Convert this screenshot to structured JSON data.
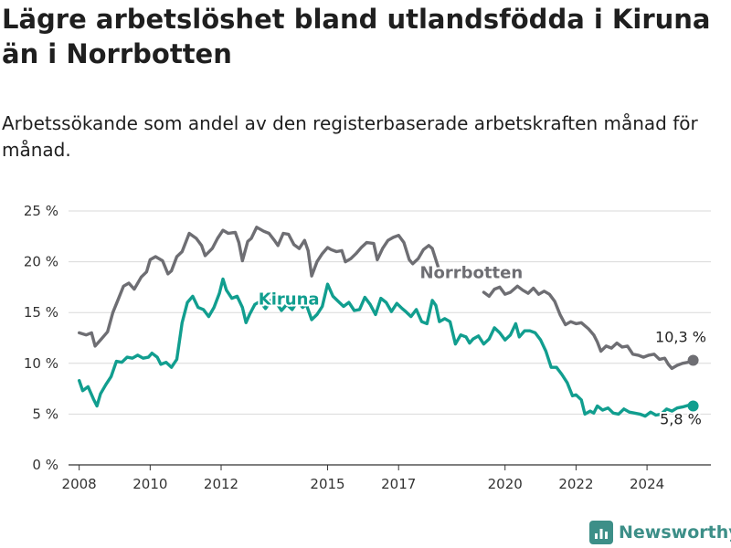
{
  "title": "Lägre arbetslöshet bland utlandsfödda i Kiruna än i Norrbotten",
  "subtitle": "Arbetssökande som andel av den registerbaserade arbetskraften månad för månad.",
  "brand": {
    "name": "Newsworthy",
    "icon": "newsworthy-logo-icon",
    "color": "#3d8f88"
  },
  "chart_data": {
    "type": "line",
    "title": "Lägre arbetslöshet bland utlandsfödda i Kiruna än i Norrbotten",
    "subtitle": "Arbetssökande som andel av den registerbaserade arbetskraften månad för månad.",
    "xlabel": "",
    "ylabel": "",
    "xlim": [
      2007.7,
      2025.8
    ],
    "ylim": [
      0,
      25
    ],
    "grid": true,
    "legend": "inline labels",
    "x_ticks": [
      {
        "value": 2008,
        "label": "2008"
      },
      {
        "value": 2010,
        "label": "2010"
      },
      {
        "value": 2012,
        "label": "2012"
      },
      {
        "value": 2015,
        "label": "2015"
      },
      {
        "value": 2017,
        "label": "2017"
      },
      {
        "value": 2020,
        "label": "2020"
      },
      {
        "value": 2022,
        "label": "2022"
      },
      {
        "value": 2024,
        "label": "2024"
      }
    ],
    "y_ticks": [
      {
        "value": 0,
        "label": "0 %"
      },
      {
        "value": 5,
        "label": "5 %"
      },
      {
        "value": 10,
        "label": "10 %"
      },
      {
        "value": 15,
        "label": "15 %"
      },
      {
        "value": 20,
        "label": "20 %"
      },
      {
        "value": 25,
        "label": "25 %"
      }
    ],
    "series": [
      {
        "name": "Norrbotten",
        "color": "#6e6e73",
        "end_label": "10,3 %",
        "points": [
          [
            2008.0,
            13.0
          ],
          [
            2008.2,
            12.8
          ],
          [
            2008.35,
            13.0
          ],
          [
            2008.45,
            11.7
          ],
          [
            2008.6,
            12.3
          ],
          [
            2008.8,
            13.1
          ],
          [
            2008.95,
            15.0
          ],
          [
            2009.1,
            16.3
          ],
          [
            2009.25,
            17.6
          ],
          [
            2009.4,
            17.9
          ],
          [
            2009.55,
            17.3
          ],
          [
            2009.75,
            18.5
          ],
          [
            2009.9,
            19.0
          ],
          [
            2010.0,
            20.2
          ],
          [
            2010.15,
            20.5
          ],
          [
            2010.35,
            20.1
          ],
          [
            2010.5,
            18.8
          ],
          [
            2010.6,
            19.1
          ],
          [
            2010.75,
            20.5
          ],
          [
            2010.9,
            21.0
          ],
          [
            2011.0,
            21.9
          ],
          [
            2011.1,
            22.8
          ],
          [
            2011.3,
            22.3
          ],
          [
            2011.45,
            21.6
          ],
          [
            2011.55,
            20.6
          ],
          [
            2011.75,
            21.3
          ],
          [
            2011.9,
            22.3
          ],
          [
            2012.05,
            23.1
          ],
          [
            2012.2,
            22.8
          ],
          [
            2012.4,
            22.9
          ],
          [
            2012.5,
            21.9
          ],
          [
            2012.6,
            20.1
          ],
          [
            2012.75,
            22.0
          ],
          [
            2012.85,
            22.3
          ],
          [
            2013.0,
            23.4
          ],
          [
            2013.2,
            23.0
          ],
          [
            2013.35,
            22.8
          ],
          [
            2013.5,
            22.1
          ],
          [
            2013.6,
            21.6
          ],
          [
            2013.75,
            22.8
          ],
          [
            2013.9,
            22.7
          ],
          [
            2014.05,
            21.7
          ],
          [
            2014.2,
            21.3
          ],
          [
            2014.35,
            22.1
          ],
          [
            2014.45,
            21.1
          ],
          [
            2014.55,
            18.6
          ],
          [
            2014.7,
            20.0
          ],
          [
            2014.85,
            20.8
          ],
          [
            2015.0,
            21.4
          ],
          [
            2015.1,
            21.2
          ],
          [
            2015.25,
            21.0
          ],
          [
            2015.4,
            21.1
          ],
          [
            2015.5,
            20.0
          ],
          [
            2015.65,
            20.3
          ],
          [
            2015.8,
            20.8
          ],
          [
            2015.95,
            21.4
          ],
          [
            2016.1,
            21.9
          ],
          [
            2016.3,
            21.8
          ],
          [
            2016.4,
            20.2
          ],
          [
            2016.55,
            21.3
          ],
          [
            2016.7,
            22.1
          ],
          [
            2016.85,
            22.4
          ],
          [
            2017.0,
            22.6
          ],
          [
            2017.15,
            21.9
          ],
          [
            2017.3,
            20.2
          ],
          [
            2017.4,
            19.8
          ],
          [
            2017.55,
            20.3
          ],
          [
            2017.7,
            21.2
          ],
          [
            2017.85,
            21.6
          ],
          [
            2017.95,
            21.3
          ],
          [
            2018.05,
            20.2
          ],
          [
            2018.15,
            19.1
          ],
          [
            2019.4,
            17.0
          ],
          [
            2019.55,
            16.6
          ],
          [
            2019.7,
            17.3
          ],
          [
            2019.85,
            17.5
          ],
          [
            2020.0,
            16.8
          ],
          [
            2020.15,
            17.0
          ],
          [
            2020.35,
            17.6
          ],
          [
            2020.5,
            17.2
          ],
          [
            2020.65,
            16.9
          ],
          [
            2020.8,
            17.4
          ],
          [
            2020.95,
            16.8
          ],
          [
            2021.1,
            17.1
          ],
          [
            2021.25,
            16.8
          ],
          [
            2021.4,
            16.1
          ],
          [
            2021.55,
            14.8
          ],
          [
            2021.7,
            13.8
          ],
          [
            2021.85,
            14.1
          ],
          [
            2022.0,
            13.9
          ],
          [
            2022.15,
            14.0
          ],
          [
            2022.35,
            13.4
          ],
          [
            2022.5,
            12.8
          ],
          [
            2022.6,
            12.1
          ],
          [
            2022.7,
            11.2
          ],
          [
            2022.85,
            11.7
          ],
          [
            2023.0,
            11.5
          ],
          [
            2023.15,
            12.0
          ],
          [
            2023.3,
            11.6
          ],
          [
            2023.45,
            11.7
          ],
          [
            2023.6,
            10.9
          ],
          [
            2023.75,
            10.8
          ],
          [
            2023.9,
            10.6
          ],
          [
            2024.05,
            10.8
          ],
          [
            2024.2,
            10.9
          ],
          [
            2024.35,
            10.4
          ],
          [
            2024.5,
            10.5
          ],
          [
            2024.6,
            9.9
          ],
          [
            2024.7,
            9.5
          ],
          [
            2024.85,
            9.8
          ],
          [
            2025.0,
            10.0
          ],
          [
            2025.15,
            10.1
          ],
          [
            2025.3,
            10.3
          ]
        ]
      },
      {
        "name": "Kiruna",
        "color": "#119e8f",
        "end_label": "5,8 %",
        "points": [
          [
            2008.0,
            8.3
          ],
          [
            2008.1,
            7.3
          ],
          [
            2008.25,
            7.7
          ],
          [
            2008.4,
            6.5
          ],
          [
            2008.5,
            5.8
          ],
          [
            2008.6,
            7.0
          ],
          [
            2008.75,
            7.9
          ],
          [
            2008.9,
            8.7
          ],
          [
            2009.05,
            10.2
          ],
          [
            2009.2,
            10.1
          ],
          [
            2009.35,
            10.6
          ],
          [
            2009.5,
            10.5
          ],
          [
            2009.65,
            10.8
          ],
          [
            2009.8,
            10.5
          ],
          [
            2009.95,
            10.6
          ],
          [
            2010.05,
            11.0
          ],
          [
            2010.2,
            10.6
          ],
          [
            2010.3,
            9.9
          ],
          [
            2010.45,
            10.1
          ],
          [
            2010.6,
            9.6
          ],
          [
            2010.75,
            10.4
          ],
          [
            2010.9,
            14.0
          ],
          [
            2011.05,
            16.0
          ],
          [
            2011.2,
            16.6
          ],
          [
            2011.35,
            15.5
          ],
          [
            2011.5,
            15.3
          ],
          [
            2011.65,
            14.6
          ],
          [
            2011.8,
            15.5
          ],
          [
            2011.95,
            16.9
          ],
          [
            2012.05,
            18.3
          ],
          [
            2012.15,
            17.2
          ],
          [
            2012.3,
            16.4
          ],
          [
            2012.45,
            16.6
          ],
          [
            2012.6,
            15.5
          ],
          [
            2012.7,
            14.0
          ],
          [
            2012.8,
            14.8
          ],
          [
            2012.95,
            15.8
          ],
          [
            2013.1,
            16.1
          ],
          [
            2013.25,
            15.4
          ],
          [
            2013.4,
            16.2
          ],
          [
            2013.55,
            16.0
          ],
          [
            2013.7,
            15.2
          ],
          [
            2013.85,
            15.8
          ],
          [
            2014.0,
            15.3
          ],
          [
            2014.15,
            16.1
          ],
          [
            2014.3,
            15.5
          ],
          [
            2014.4,
            15.8
          ],
          [
            2014.55,
            14.3
          ],
          [
            2014.7,
            14.8
          ],
          [
            2014.85,
            15.6
          ],
          [
            2015.0,
            17.8
          ],
          [
            2015.15,
            16.6
          ],
          [
            2015.3,
            16.1
          ],
          [
            2015.45,
            15.6
          ],
          [
            2015.6,
            16.0
          ],
          [
            2015.75,
            15.2
          ],
          [
            2015.9,
            15.3
          ],
          [
            2016.05,
            16.5
          ],
          [
            2016.2,
            15.8
          ],
          [
            2016.35,
            14.8
          ],
          [
            2016.5,
            16.4
          ],
          [
            2016.65,
            16.0
          ],
          [
            2016.8,
            15.1
          ],
          [
            2016.95,
            15.9
          ],
          [
            2017.1,
            15.4
          ],
          [
            2017.2,
            15.1
          ],
          [
            2017.35,
            14.6
          ],
          [
            2017.5,
            15.3
          ],
          [
            2017.65,
            14.1
          ],
          [
            2017.8,
            13.9
          ],
          [
            2017.95,
            16.2
          ],
          [
            2018.05,
            15.7
          ],
          [
            2018.15,
            14.1
          ],
          [
            2018.3,
            14.4
          ],
          [
            2018.45,
            14.1
          ],
          [
            2018.6,
            11.9
          ],
          [
            2018.75,
            12.8
          ],
          [
            2018.9,
            12.6
          ],
          [
            2019.0,
            12.0
          ],
          [
            2019.1,
            12.4
          ],
          [
            2019.25,
            12.7
          ],
          [
            2019.4,
            11.9
          ],
          [
            2019.55,
            12.4
          ],
          [
            2019.7,
            13.5
          ],
          [
            2019.85,
            13.0
          ],
          [
            2020.0,
            12.3
          ],
          [
            2020.15,
            12.8
          ],
          [
            2020.3,
            13.9
          ],
          [
            2020.4,
            12.6
          ],
          [
            2020.55,
            13.2
          ],
          [
            2020.7,
            13.2
          ],
          [
            2020.85,
            13.0
          ],
          [
            2021.0,
            12.3
          ],
          [
            2021.15,
            11.2
          ],
          [
            2021.3,
            9.6
          ],
          [
            2021.45,
            9.6
          ],
          [
            2021.6,
            8.9
          ],
          [
            2021.75,
            8.1
          ],
          [
            2021.9,
            6.8
          ],
          [
            2022.0,
            6.9
          ],
          [
            2022.15,
            6.4
          ],
          [
            2022.25,
            5.0
          ],
          [
            2022.4,
            5.3
          ],
          [
            2022.5,
            5.1
          ],
          [
            2022.6,
            5.8
          ],
          [
            2022.75,
            5.4
          ],
          [
            2022.9,
            5.6
          ],
          [
            2023.05,
            5.1
          ],
          [
            2023.2,
            5.0
          ],
          [
            2023.35,
            5.5
          ],
          [
            2023.5,
            5.2
          ],
          [
            2023.65,
            5.1
          ],
          [
            2023.8,
            5.0
          ],
          [
            2023.95,
            4.8
          ],
          [
            2024.1,
            5.2
          ],
          [
            2024.25,
            4.9
          ],
          [
            2024.4,
            5.0
          ],
          [
            2024.55,
            5.5
          ],
          [
            2024.7,
            5.3
          ],
          [
            2024.85,
            5.6
          ],
          [
            2025.0,
            5.7
          ],
          [
            2025.1,
            5.8
          ],
          [
            2025.2,
            5.9
          ],
          [
            2025.3,
            5.8
          ]
        ]
      }
    ]
  }
}
